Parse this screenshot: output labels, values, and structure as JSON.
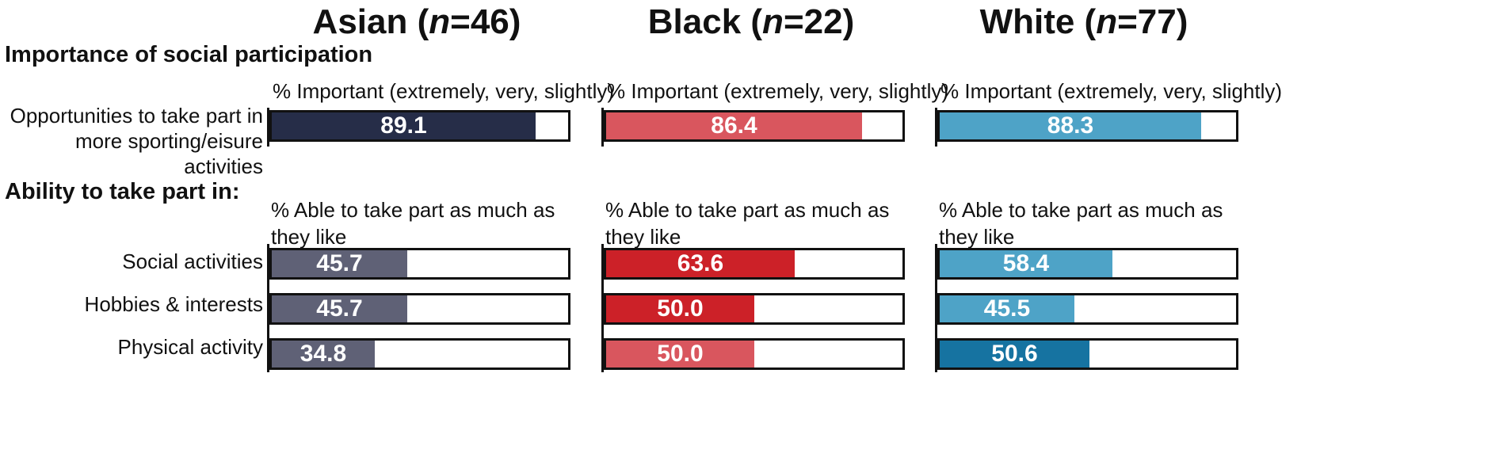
{
  "section_titles": {
    "importance": "Importance of social participation",
    "ability": "Ability to take part in:"
  },
  "chart_data": {
    "type": "bar",
    "orientation": "horizontal",
    "xlim": [
      0,
      100
    ],
    "groups": [
      {
        "label": "Asian",
        "n_prefix": "n",
        "n_suffix": "=46",
        "importance_header": "% Important (extremely, very, slightly)",
        "ability_header": "% Able to take part as much as they like",
        "importance_values": [
          89.1
        ],
        "ability_values": [
          45.7,
          45.7,
          34.8
        ],
        "importance_value_labels": [
          "89.1"
        ],
        "ability_value_labels": [
          "45.7",
          "45.7",
          "34.8"
        ],
        "importance_colors": [
          "#262d48"
        ],
        "ability_colors": [
          "#5f6176",
          "#5f6176",
          "#5f6176"
        ]
      },
      {
        "label": "Black",
        "n_prefix": "n",
        "n_suffix": "=22",
        "importance_header": "% Important (extremely, very, slightly)",
        "ability_header": "% Able to take part as much as they like",
        "importance_values": [
          86.4
        ],
        "ability_values": [
          63.6,
          50.0,
          50.0
        ],
        "importance_value_labels": [
          "86.4"
        ],
        "ability_value_labels": [
          "63.6",
          "50.0",
          "50.0"
        ],
        "importance_colors": [
          "#d9565e"
        ],
        "ability_colors": [
          "#cc2128",
          "#cc2128",
          "#d9565e"
        ]
      },
      {
        "label": "White",
        "n_prefix": "n",
        "n_suffix": "=77",
        "importance_header": "% Important (extremely, very, slightly)",
        "ability_header": "% Able to take part as much as they like",
        "importance_values": [
          88.3
        ],
        "ability_values": [
          58.4,
          45.5,
          50.6
        ],
        "importance_value_labels": [
          "88.3"
        ],
        "ability_value_labels": [
          "58.4",
          "45.5",
          "50.6"
        ],
        "importance_colors": [
          "#4ea3c7"
        ],
        "ability_colors": [
          "#4ea3c7",
          "#4ea3c7",
          "#1673a1"
        ]
      }
    ],
    "importance_categories": [
      "Opportunities to take part in more sporting/eisure activities"
    ],
    "ability_categories": [
      "Social activities",
      "Hobbies & interests",
      "Physical activity"
    ]
  }
}
